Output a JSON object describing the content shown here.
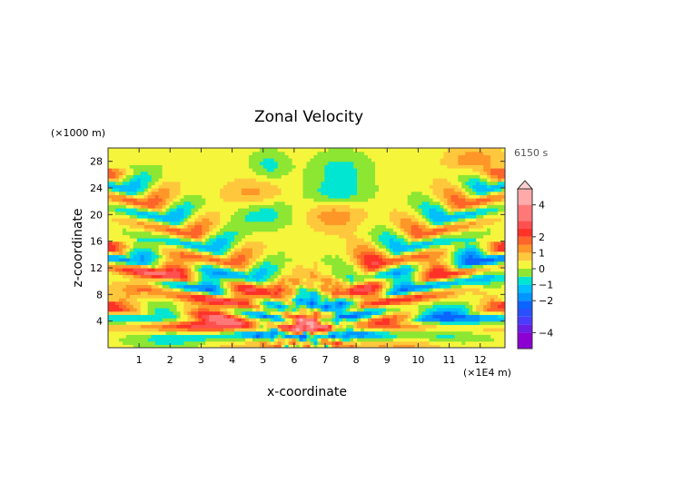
{
  "chart_data": {
    "type": "heatmap",
    "title": "Zonal Velocity",
    "xlabel": "x-coordinate",
    "ylabel": "z-coordinate",
    "x_unit": "(×1E4 m)",
    "y_unit": "(×1000 m)",
    "time_label": "6150 s",
    "xlim": [
      0,
      12.8
    ],
    "ylim": [
      0,
      30
    ],
    "x_ticks": [
      {
        "value": 1,
        "label": "1"
      },
      {
        "value": 2,
        "label": "2"
      },
      {
        "value": 3,
        "label": "3"
      },
      {
        "value": 4,
        "label": "4"
      },
      {
        "value": 5,
        "label": "5"
      },
      {
        "value": 6,
        "label": "6"
      },
      {
        "value": 7,
        "label": "7"
      },
      {
        "value": 8,
        "label": "8"
      },
      {
        "value": 9,
        "label": "9"
      },
      {
        "value": 10,
        "label": "10"
      },
      {
        "value": 11,
        "label": "11"
      },
      {
        "value": 12,
        "label": "12"
      }
    ],
    "y_ticks": [
      {
        "value": 4,
        "label": "4"
      },
      {
        "value": 8,
        "label": "8"
      },
      {
        "value": 12,
        "label": "12"
      },
      {
        "value": 16,
        "label": "16"
      },
      {
        "value": 20,
        "label": "20"
      },
      {
        "value": 24,
        "label": "24"
      },
      {
        "value": 28,
        "label": "28"
      }
    ],
    "colorbar": {
      "min": -5,
      "max": 5,
      "levels": [
        {
          "from": -5.0,
          "to": -4.0,
          "color": "#8c00d2"
        },
        {
          "from": -4.0,
          "to": -3.5,
          "color": "#6a1ee6"
        },
        {
          "from": -3.5,
          "to": -3.0,
          "color": "#4a3cff"
        },
        {
          "from": -3.0,
          "to": -2.5,
          "color": "#2850ff"
        },
        {
          "from": -2.5,
          "to": -2.0,
          "color": "#0a64ff"
        },
        {
          "from": -2.0,
          "to": -1.5,
          "color": "#0096ff"
        },
        {
          "from": -1.5,
          "to": -1.0,
          "color": "#00beff"
        },
        {
          "from": -1.0,
          "to": -0.5,
          "color": "#00e6d2"
        },
        {
          "from": -0.5,
          "to": 0.0,
          "color": "#8ce632"
        },
        {
          "from": 0.0,
          "to": 0.5,
          "color": "#f5f53c"
        },
        {
          "from": 0.5,
          "to": 1.0,
          "color": "#ffc83c"
        },
        {
          "from": 1.0,
          "to": 1.5,
          "color": "#ff9628"
        },
        {
          "from": 1.5,
          "to": 2.0,
          "color": "#ff6428"
        },
        {
          "from": 2.0,
          "to": 2.5,
          "color": "#ff3228"
        },
        {
          "from": 2.5,
          "to": 3.0,
          "color": "#ff5050"
        },
        {
          "from": 3.0,
          "to": 4.0,
          "color": "#ff7878"
        },
        {
          "from": 4.0,
          "to": 5.0,
          "color": "#ffaaaa"
        }
      ],
      "tick_labels": [
        {
          "value": 4,
          "label": "4"
        },
        {
          "value": 2,
          "label": "2"
        },
        {
          "value": 1,
          "label": "1"
        },
        {
          "value": 0,
          "label": "0"
        },
        {
          "value": -1,
          "label": "−1"
        },
        {
          "value": -2,
          "label": "−2"
        },
        {
          "value": -4,
          "label": "−4"
        }
      ],
      "overflow_triangle": "top",
      "overflow_color": "#ffd0d0"
    },
    "field": {
      "background_value": 0.2,
      "center_x": 6.4,
      "rays": [
        {
          "side": "left",
          "x0": 0.0,
          "z0": 15.0,
          "x1": 6.3,
          "z1": 3.0,
          "amp": 2.2,
          "width": 0.9
        },
        {
          "side": "left",
          "x0": 0.0,
          "z0": 26.0,
          "x1": 6.2,
          "z1": 5.5,
          "amp": 1.6,
          "width": 1.0
        },
        {
          "side": "left",
          "x0": 0.0,
          "z0": 6.0,
          "x1": 6.3,
          "z1": 1.8,
          "amp": 1.8,
          "width": 1.0
        },
        {
          "side": "right",
          "x0": 12.8,
          "z0": 15.0,
          "x1": 6.5,
          "z1": 3.0,
          "amp": 2.2,
          "width": 0.9
        },
        {
          "side": "right",
          "x0": 12.8,
          "z0": 26.0,
          "x1": 6.6,
          "z1": 5.5,
          "amp": 1.6,
          "width": 1.0
        },
        {
          "side": "right",
          "x0": 12.8,
          "z0": 6.0,
          "x1": 6.5,
          "z1": 1.8,
          "amp": 1.8,
          "width": 1.0
        }
      ],
      "blobs": [
        {
          "x": 1.2,
          "z": 10.5,
          "sx": 0.9,
          "sz": 1.0,
          "v": 1.2
        },
        {
          "x": 1.0,
          "z": 6.5,
          "sx": 1.0,
          "sz": 0.7,
          "v": 0.8
        },
        {
          "x": 3.3,
          "z": 4.4,
          "sx": 1.4,
          "sz": 0.8,
          "v": 1.4
        },
        {
          "x": 2.1,
          "z": 1.0,
          "sx": 1.2,
          "sz": 0.7,
          "v": -0.8
        },
        {
          "x": 4.7,
          "z": 23.0,
          "sx": 1.0,
          "sz": 0.8,
          "v": 1.2
        },
        {
          "x": 5.0,
          "z": 20.5,
          "sx": 1.0,
          "sz": 0.8,
          "v": -1.2
        },
        {
          "x": 5.2,
          "z": 27.4,
          "sx": 0.6,
          "sz": 0.7,
          "v": -0.9
        },
        {
          "x": 5.8,
          "z": 7.0,
          "sx": 0.8,
          "sz": 0.6,
          "v": 1.2
        },
        {
          "x": 7.3,
          "z": 20.0,
          "sx": 1.0,
          "sz": 0.8,
          "v": 1.2
        },
        {
          "x": 7.4,
          "z": 23.2,
          "sx": 1.0,
          "sz": 0.7,
          "v": -1.1
        },
        {
          "x": 7.5,
          "z": 27.0,
          "sx": 0.9,
          "sz": 0.8,
          "v": -0.9
        },
        {
          "x": 8.3,
          "z": 12.0,
          "sx": 0.7,
          "sz": 0.8,
          "v": 1.2
        },
        {
          "x": 10.7,
          "z": 4.0,
          "sx": 1.4,
          "sz": 0.8,
          "v": -1.3
        },
        {
          "x": 11.5,
          "z": 7.0,
          "sx": 1.2,
          "sz": 0.7,
          "v": 1.1
        },
        {
          "x": 12.2,
          "z": 11.0,
          "sx": 0.8,
          "sz": 0.8,
          "v": -1.0
        },
        {
          "x": 11.8,
          "z": 28.0,
          "sx": 0.9,
          "sz": 0.8,
          "v": 1.2
        },
        {
          "x": 9.8,
          "z": 1.0,
          "sx": 1.0,
          "sz": 0.6,
          "v": 0.8
        }
      ]
    }
  }
}
